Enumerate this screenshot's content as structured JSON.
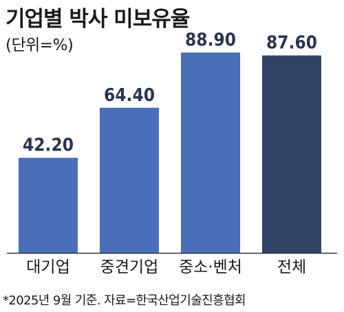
{
  "title": "기업별 박사 미보유율",
  "unit_note": "(단위=%)",
  "footnote": "*2025년 9월 기준. 자료=한국산업기술진흥협회",
  "colors": {
    "bar": "#4a6fb8",
    "bar_highlight": "#334466",
    "axis": "#333333",
    "value_text": "#2b3550"
  },
  "chart_data": {
    "type": "bar",
    "title": "기업별 박사 미보유율",
    "ylabel": "(단위=%)",
    "xlabel": "",
    "categories": [
      "대기업",
      "중견기업",
      "중소·벤처",
      "전체"
    ],
    "values": [
      42.2,
      64.4,
      88.9,
      87.6
    ],
    "value_labels": [
      "42.20",
      "64.40",
      "88.90",
      "87.60"
    ],
    "highlight_index": 3,
    "ylim": [
      0,
      100
    ],
    "grid": false,
    "legend": "none"
  }
}
